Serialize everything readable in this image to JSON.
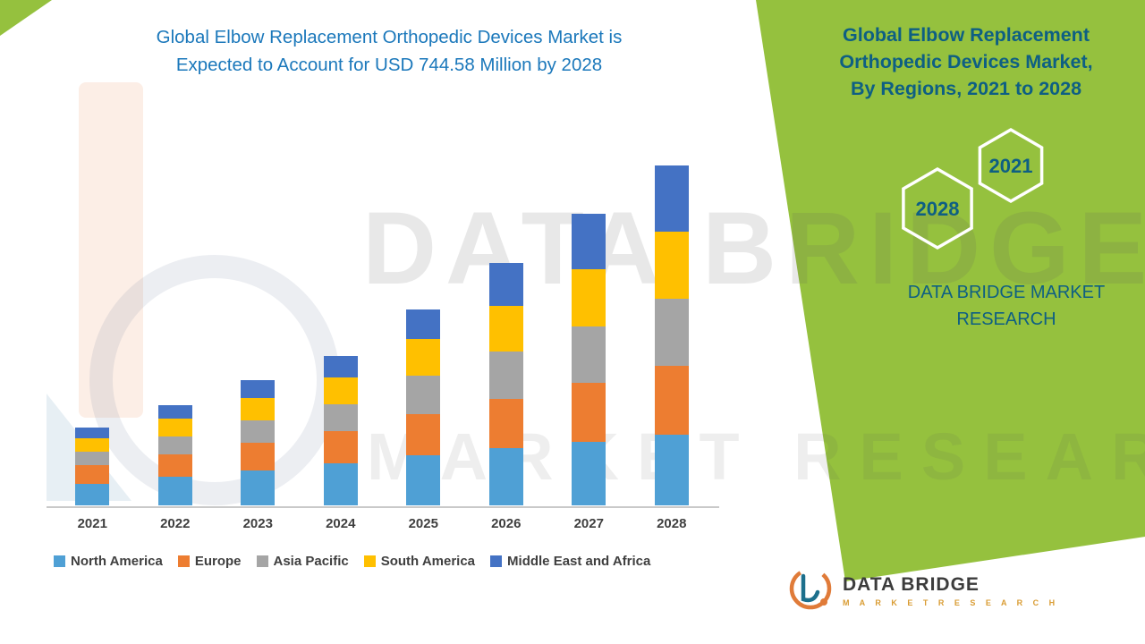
{
  "chart": {
    "title_line1": "Global Elbow Replacement Orthopedic Devices Market is",
    "title_line2": "Expected to Account for USD 744.58 Million by 2028",
    "title_color": "#1B78BB"
  },
  "chart_data": {
    "type": "bar",
    "stacked": true,
    "title": "Global Elbow Replacement Orthopedic Devices Market is Expected to Account for USD 744.58 Million by 2028",
    "unit": "USD Million",
    "categories": [
      "2021",
      "2022",
      "2023",
      "2024",
      "2025",
      "2026",
      "2027",
      "2028"
    ],
    "series": [
      {
        "name": "North America",
        "color": "#4FA0D5",
        "values": [
          48,
          62,
          77,
          92,
          110,
          125,
          140,
          155
        ]
      },
      {
        "name": "Europe",
        "color": "#ED7D31",
        "values": [
          40,
          50,
          60,
          70,
          90,
          108,
          128,
          150
        ]
      },
      {
        "name": "Asia Pacific",
        "color": "#A5A5A5",
        "values": [
          30,
          40,
          50,
          60,
          85,
          105,
          125,
          148
        ]
      },
      {
        "name": "South America",
        "color": "#FFC000",
        "values": [
          30,
          38,
          48,
          58,
          80,
          100,
          125,
          147
        ]
      },
      {
        "name": "Middle East and Africa",
        "color": "#4472C4",
        "values": [
          22,
          30,
          40,
          47,
          64,
          94,
          121,
          144.58
        ]
      }
    ],
    "totals_estimated": [
      170,
      220,
      275,
      327,
      429,
      532,
      639,
      744.58
    ],
    "ylim": [
      0,
      744.58
    ],
    "grid": false,
    "legend_position": "bottom",
    "highlight_value": "USD 744.58 Million",
    "highlight_year": "2028"
  },
  "side_panel": {
    "bg_color": "#95C13E",
    "text_color": "#0E5F83",
    "title_line1": "Global Elbow Replacement",
    "title_line2": "Orthopedic Devices Market,",
    "title_line3": "By Regions, 2021 to 2028",
    "hex_year_top": "2021",
    "hex_year_bottom": "2028",
    "brand_line1": "DATA BRIDGE MARKET",
    "brand_line2": "RESEARCH"
  },
  "watermark": {
    "line1": "DATA BRIDGE",
    "line2": "MARKET RESEARCH"
  },
  "logo": {
    "name": "DATA BRIDGE",
    "tagline": "M A R K E T   R E S E A R C H"
  }
}
